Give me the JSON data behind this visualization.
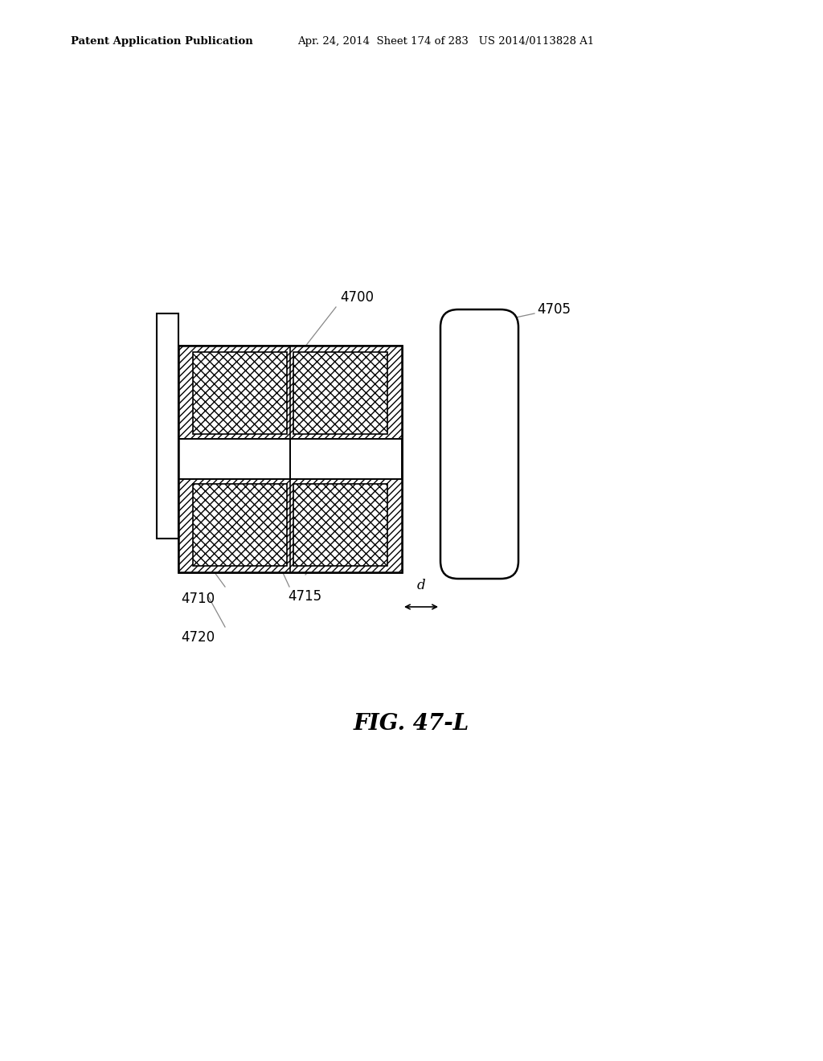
{
  "header_left": "Patent Application Publication",
  "header_right": "Apr. 24, 2014  Sheet 174 of 283   US 2014/0113828 A1",
  "figure_label": "FIG. 47-L",
  "background_color": "#ffffff"
}
